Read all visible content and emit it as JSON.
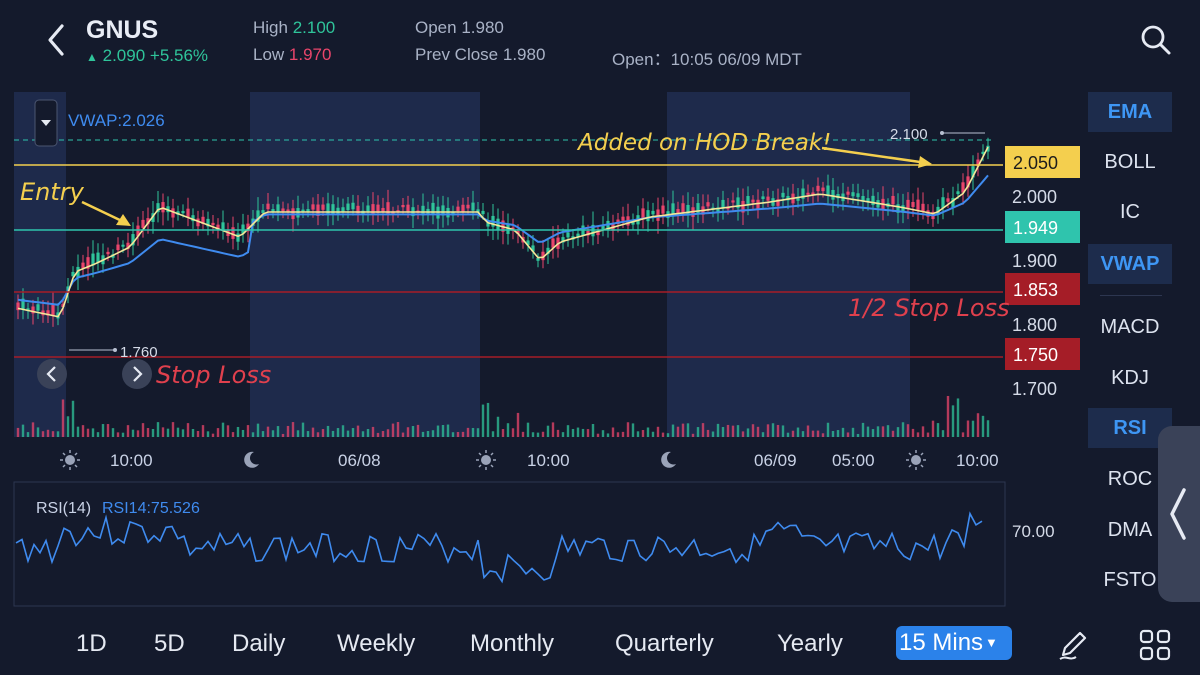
{
  "header": {
    "ticker": "GNUS",
    "price": "2.090",
    "change": "+5.56%",
    "high_label": "High",
    "high_value": "2.100",
    "low_label": "Low",
    "low_value": "1.970",
    "open_label": "Open",
    "open_value": "1.980",
    "prev_close_label": "Prev Close",
    "prev_close_value": "1.980",
    "session_open_label": "Open：",
    "session_open_value": "10:05 06/09 MDT"
  },
  "chart": {
    "vwap_readout": "VWAP:2.026",
    "price_ticks": [
      "2.000",
      "1.900",
      "1.800",
      "1.700"
    ],
    "price_tags": [
      {
        "value": "2.050",
        "color": "#f4cf4e",
        "text_color": "#1c1c1c"
      },
      {
        "value": "1.949",
        "color": "#2fc4ad",
        "text_color": "#ffffff"
      },
      {
        "value": "1.853",
        "color": "#a51d27",
        "text_color": "#ffffff"
      },
      {
        "value": "1.750",
        "color": "#a51d27",
        "text_color": "#ffffff"
      }
    ],
    "high_marker": "2.100",
    "low_marker": "1.760",
    "time_labels": [
      "10:00",
      "06/08",
      "10:00",
      "06/09",
      "05:00",
      "10:00"
    ],
    "annotations": {
      "entry": "Entry",
      "added": "Added on HOD Break!",
      "half_stop": "1/2 Stop Loss",
      "stop": "Stop Loss"
    },
    "rsi_label": "RSI(14)",
    "rsi_value": "RSI14:75.526",
    "rsi_tick": "70.00",
    "colors": {
      "up": "#2fc49a",
      "down": "#e9456b",
      "yellow_line": "#f4cf4e",
      "teal_line": "#2fc4ad",
      "stop_line": "#a51d27",
      "vwap_line": "#3f8bef"
    }
  },
  "indicators": [
    {
      "label": "EMA",
      "active": true
    },
    {
      "label": "BOLL",
      "active": false
    },
    {
      "label": "IC",
      "active": false
    },
    {
      "label": "VWAP",
      "active": true
    },
    {
      "label": "MACD",
      "active": false
    },
    {
      "label": "KDJ",
      "active": false
    },
    {
      "label": "RSI",
      "active": true
    },
    {
      "label": "ROC",
      "active": false
    },
    {
      "label": "DMA",
      "active": false
    },
    {
      "label": "FSTO",
      "active": false
    }
  ],
  "timeframes": [
    "1D",
    "5D",
    "Daily",
    "Weekly",
    "Monthly",
    "Quarterly",
    "Yearly"
  ],
  "active_timeframe": "15 Mins",
  "icons": [
    "back-arrow-icon",
    "search-icon",
    "pen-icon",
    "grid-icon",
    "sun-icon",
    "moon-icon"
  ]
}
